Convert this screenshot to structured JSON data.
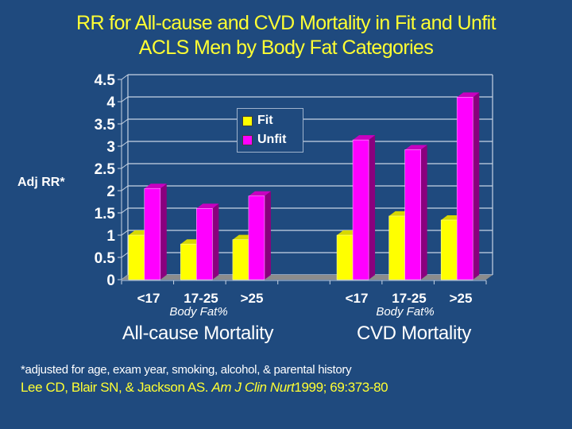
{
  "title": {
    "line1": "RR for All-cause and CVD Mortality in Fit and Unfit",
    "line2": "ACLS Men by Body Fat Categories"
  },
  "colors": {
    "background": "#1f4a7e",
    "title": "#ffff33",
    "fit": "#ffff00",
    "unfit": "#ff00ff",
    "grid": "#c8d4e4"
  },
  "chart_data": {
    "type": "bar",
    "title": "RR for All-cause and CVD Mortality in Fit and Unfit ACLS Men by Body Fat Categories",
    "ylabel": "Adj RR*",
    "xlabel": "Body Fat%",
    "ylim": [
      0,
      4.5
    ],
    "yticks": [
      "0",
      "0.5",
      "1",
      "1.5",
      "2",
      "2.5",
      "3",
      "3.5",
      "4",
      "4.5"
    ],
    "grid": true,
    "legend_position": "top-center",
    "groups": [
      {
        "name": "All-cause Mortality",
        "sublabel": "Body Fat%",
        "categories": [
          "<17",
          "17-25",
          ">25"
        ],
        "series": [
          {
            "name": "Fit",
            "values": [
              1.0,
              0.8,
              0.9
            ]
          },
          {
            "name": "Unfit",
            "values": [
              2.05,
              1.6,
              1.88
            ]
          }
        ]
      },
      {
        "name": "CVD Mortality",
        "sublabel": "Body Fat%",
        "categories": [
          "<17",
          "17-25",
          ">25"
        ],
        "series": [
          {
            "name": "Fit",
            "values": [
              1.0,
              1.43,
              1.34
            ]
          },
          {
            "name": "Unfit",
            "values": [
              3.14,
              2.92,
              4.1
            ]
          }
        ]
      }
    ],
    "legend": [
      "Fit",
      "Unfit"
    ]
  },
  "footnote": "*adjusted for age, exam year, smoking, alcohol, & parental history",
  "citation": {
    "authors": "Lee CD, Blair SN, & Jackson AS.",
    "journal": "Am J Clin Nurt",
    "details": "1999; 69:373-80"
  }
}
